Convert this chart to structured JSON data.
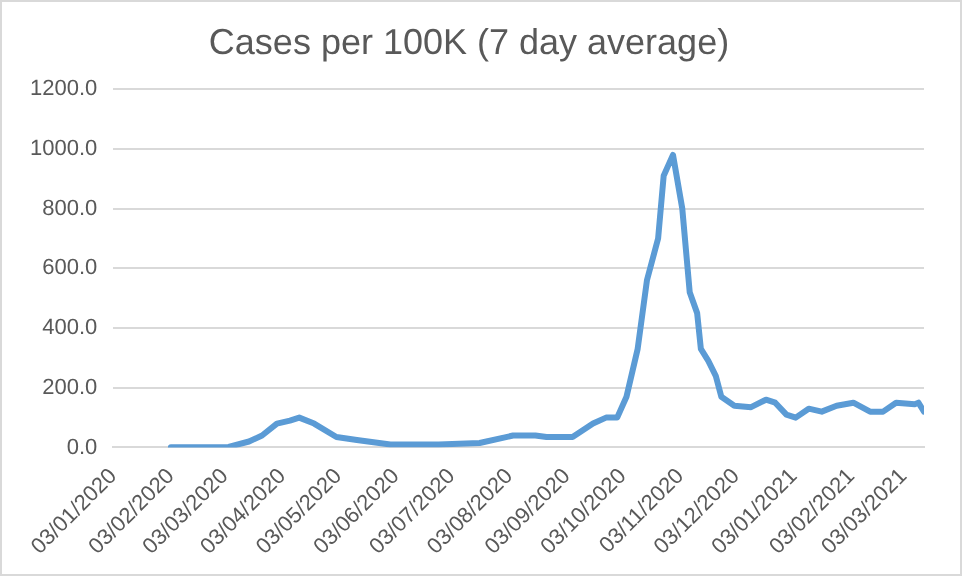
{
  "chart_data": {
    "type": "line",
    "title": "Cases per 100K (7 day average)",
    "x": [
      "2020-02-03",
      "2020-03-05",
      "2020-03-16",
      "2020-03-23",
      "2020-03-31",
      "2020-04-07",
      "2020-04-12",
      "2020-04-20",
      "2020-05-02",
      "2020-05-13",
      "2020-05-31",
      "2020-06-26",
      "2020-07-18",
      "2020-08-05",
      "2020-08-17",
      "2020-08-23",
      "2020-09-06",
      "2020-09-17",
      "2020-09-24",
      "2020-09-30",
      "2020-10-05",
      "2020-10-11",
      "2020-10-16",
      "2020-10-22",
      "2020-10-25",
      "2020-10-30",
      "2020-11-04",
      "2020-11-08",
      "2020-11-12",
      "2020-11-14",
      "2020-11-18",
      "2020-11-22",
      "2020-11-25",
      "2020-12-02",
      "2020-12-11",
      "2020-12-19",
      "2020-12-24",
      "2020-12-30",
      "2021-01-04",
      "2021-01-11",
      "2021-01-18",
      "2021-01-26",
      "2021-02-04",
      "2021-02-13",
      "2021-02-20",
      "2021-02-27",
      "2021-03-09",
      "2021-03-11",
      "2021-03-14"
    ],
    "series": [
      {
        "color": "#5b9bd5",
        "values": [
          1,
          2,
          20,
          40,
          80,
          90,
          100,
          80,
          35,
          25,
          10,
          10,
          15,
          40,
          40,
          35,
          35,
          80,
          100,
          100,
          170,
          330,
          560,
          700,
          910,
          980,
          800,
          520,
          450,
          330,
          290,
          240,
          170,
          140,
          135,
          160,
          150,
          110,
          100,
          130,
          120,
          140,
          150,
          120,
          120,
          150,
          145,
          150,
          120
        ]
      }
    ],
    "xlim": [
      "2020-01-03",
      "2021-03-14"
    ],
    "xticks": [
      {
        "value": "2020-01-03",
        "label": "03/01/2020"
      },
      {
        "value": "2020-02-03",
        "label": "03/02/2020"
      },
      {
        "value": "2020-03-03",
        "label": "03/03/2020"
      },
      {
        "value": "2020-04-03",
        "label": "03/04/2020"
      },
      {
        "value": "2020-05-03",
        "label": "03/05/2020"
      },
      {
        "value": "2020-06-03",
        "label": "03/06/2020"
      },
      {
        "value": "2020-07-03",
        "label": "03/07/2020"
      },
      {
        "value": "2020-08-03",
        "label": "03/08/2020"
      },
      {
        "value": "2020-09-03",
        "label": "03/09/2020"
      },
      {
        "value": "2020-10-03",
        "label": "03/10/2020"
      },
      {
        "value": "2020-11-03",
        "label": "03/11/2020"
      },
      {
        "value": "2020-12-03",
        "label": "03/12/2020"
      },
      {
        "value": "2021-01-03",
        "label": "03/01/2021"
      },
      {
        "value": "2021-02-03",
        "label": "03/02/2021"
      },
      {
        "value": "2021-03-03",
        "label": "03/03/2021"
      }
    ],
    "ylim": [
      0,
      1200
    ],
    "yticks": [
      {
        "value": 0,
        "label": "0.0"
      },
      {
        "value": 200,
        "label": "200.0"
      },
      {
        "value": 400,
        "label": "400.0"
      },
      {
        "value": 600,
        "label": "600.0"
      },
      {
        "value": 800,
        "label": "800.0"
      },
      {
        "value": 1000,
        "label": "1000.0"
      },
      {
        "value": 1200,
        "label": "1200.0"
      }
    ],
    "grid": "y",
    "legend": false,
    "marker": "none",
    "line_style": "solid"
  }
}
